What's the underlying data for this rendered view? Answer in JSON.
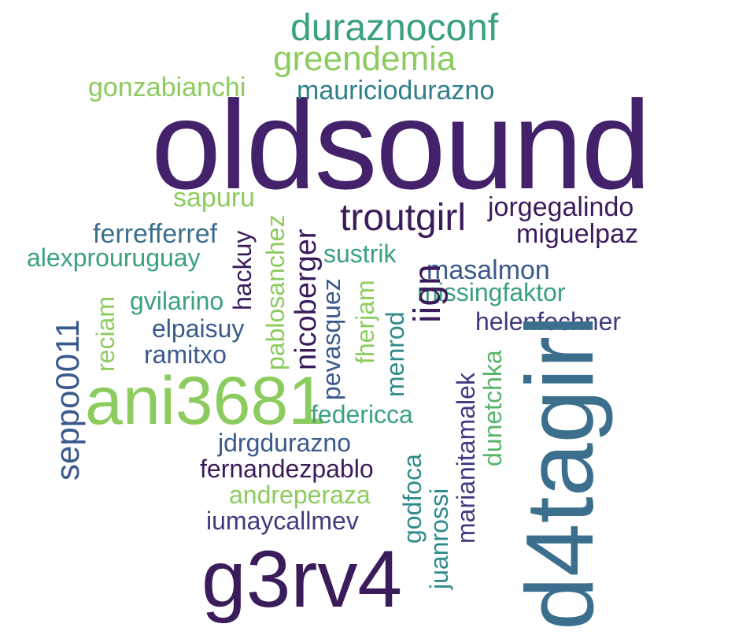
{
  "palette": {
    "deep_purple": "#44216b",
    "dark_purple": "#3b1c5a",
    "indigo": "#3e3b7e",
    "slate_blue": "#3a5a8c",
    "steel_blue": "#3c6f8d",
    "teal": "#2f8a8a",
    "sea_green": "#3aa17e",
    "green": "#57b46a",
    "light_green": "#8ccc5e"
  },
  "words": [
    {
      "id": "oldsound",
      "text": "oldsound",
      "color": "#44216b"
    },
    {
      "id": "d4tagirl",
      "text": "d4tagirl",
      "color": "#3c6f8d"
    },
    {
      "id": "g3rv4",
      "text": "g3rv4",
      "color": "#3b1c5a"
    },
    {
      "id": "ani3681",
      "text": "ani3681",
      "color": "#8ccc5e"
    },
    {
      "id": "duraznoconf",
      "text": "duraznoconf",
      "color": "#3aa17e"
    },
    {
      "id": "greendemia",
      "text": "greendemia",
      "color": "#8ccc5e"
    },
    {
      "id": "mauriciodurazno",
      "text": "mauriciodurazno",
      "color": "#2f7f8a"
    },
    {
      "id": "gonzabianchi",
      "text": "gonzabianchi",
      "color": "#8ccc5e"
    },
    {
      "id": "troutgirl",
      "text": "troutgirl",
      "color": "#3b1c5a"
    },
    {
      "id": "jorgegalindo",
      "text": "jorgegalindo",
      "color": "#3b1c5a"
    },
    {
      "id": "miguelpaz",
      "text": "miguelpaz",
      "color": "#3b1c5a"
    },
    {
      "id": "sapuru",
      "text": "sapuru",
      "color": "#8ccc5e"
    },
    {
      "id": "ferrefferref",
      "text": "ferrefferref",
      "color": "#3c6f8d"
    },
    {
      "id": "alexprouruguay",
      "text": "alexprouruguay",
      "color": "#3aa17e"
    },
    {
      "id": "sustrik",
      "text": "sustrik",
      "color": "#3aa17e"
    },
    {
      "id": "masalmon",
      "text": "masalmon",
      "color": "#3a5a8c"
    },
    {
      "id": "missingfaktor",
      "text": "missingfaktor",
      "color": "#3aa17e"
    },
    {
      "id": "helenfechner",
      "text": "helenfechner",
      "color": "#3e3b7e"
    },
    {
      "id": "gvilarino",
      "text": "gvilarino",
      "color": "#3aa17e"
    },
    {
      "id": "elpaisuy",
      "text": "elpaisuy",
      "color": "#3a5a8c"
    },
    {
      "id": "ramitxo",
      "text": "ramitxo",
      "color": "#3a5a8c"
    },
    {
      "id": "federicca",
      "text": "federicca",
      "color": "#3aa17e"
    },
    {
      "id": "jdrgdurazno",
      "text": "jdrgdurazno",
      "color": "#3a5a8c"
    },
    {
      "id": "fernandezpablo",
      "text": "fernandezpablo",
      "color": "#3b1c5a"
    },
    {
      "id": "andreperaza",
      "text": "andreperaza",
      "color": "#8ccc5e"
    },
    {
      "id": "iumaycallmev",
      "text": "iumaycallmev",
      "color": "#3e3b7e"
    },
    {
      "id": "seppo0011",
      "text": "seppo0011",
      "color": "#3a5a8c"
    },
    {
      "id": "reciam",
      "text": "reciam",
      "color": "#8ccc5e"
    },
    {
      "id": "hackuy",
      "text": "hackuy",
      "color": "#3b1c5a"
    },
    {
      "id": "pablosanchez",
      "text": "pablosanchez",
      "color": "#8ccc5e"
    },
    {
      "id": "nicoberger",
      "text": "nicoberger",
      "color": "#3b1c5a"
    },
    {
      "id": "pevasquez",
      "text": "pevasquez",
      "color": "#3a5a8c"
    },
    {
      "id": "fherjam",
      "text": "fherjam",
      "color": "#8ccc5e"
    },
    {
      "id": "menrod",
      "text": "menrod",
      "color": "#2f8a8a"
    },
    {
      "id": "iign",
      "text": "iign",
      "color": "#3b1c5a"
    },
    {
      "id": "godfoca",
      "text": "godfoca",
      "color": "#2f8a8a"
    },
    {
      "id": "juanrossi",
      "text": "juanrossi",
      "color": "#2f8a8a"
    },
    {
      "id": "marianitamalek",
      "text": "marianitamalek",
      "color": "#3e3b7e"
    },
    {
      "id": "dunetchka",
      "text": "dunetchka",
      "color": "#57b46a"
    }
  ]
}
